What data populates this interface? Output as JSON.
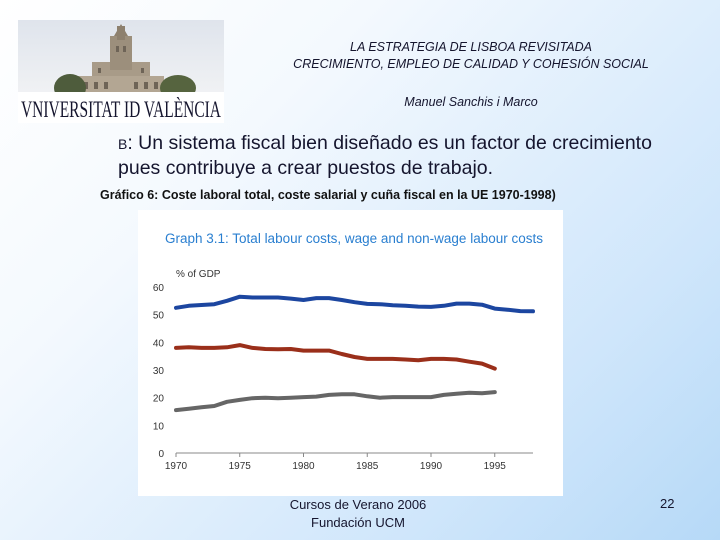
{
  "logo": {
    "wordmark": "VNIVERSITAT ID VALÈNCIA"
  },
  "header": {
    "line1": "LA ESTRATEGIA DE LISBOA REVISITADA",
    "line2": "CRECIMIENTO, EMPLEO DE CALIDAD Y COHESIÓN SOCIAL",
    "author": "Manuel Sanchis i Marco"
  },
  "bullet": {
    "letter": "B",
    "text": ": Un sistema fiscal bien diseñado es un factor de crecimiento pues contribuye a crear puestos de trabajo."
  },
  "caption": "Gráfico 6: Coste laboral total, coste salarial y cuña fiscal en la UE 1970-1998)",
  "chart_data": {
    "type": "line",
    "title": "Graph 3.1: Total labour costs, wage and non-wage labour costs",
    "ylabel": "% of GDP",
    "xlim": [
      1970,
      1998
    ],
    "ylim": [
      0,
      60
    ],
    "x_ticks": [
      1970,
      1975,
      1980,
      1985,
      1990,
      1995
    ],
    "y_ticks": [
      0,
      10,
      20,
      30,
      40,
      50,
      60
    ],
    "grid": false,
    "series": [
      {
        "color": "#1c46a0",
        "x": [
          1970,
          1971,
          1972,
          1973,
          1974,
          1975,
          1976,
          1977,
          1978,
          1979,
          1980,
          1981,
          1982,
          1983,
          1984,
          1985,
          1986,
          1987,
          1988,
          1989,
          1990,
          1991,
          1992,
          1993,
          1994,
          1995,
          1996,
          1997,
          1998
        ],
        "values": [
          52.5,
          53.2,
          53.5,
          53.8,
          55.0,
          56.5,
          56.2,
          56.2,
          56.2,
          55.8,
          55.3,
          56.0,
          56.0,
          55.3,
          54.5,
          53.9,
          53.8,
          53.4,
          53.2,
          52.9,
          52.8,
          53.2,
          54.0,
          54.0,
          53.6,
          52.2,
          51.8,
          51.3,
          51.2
        ]
      },
      {
        "color": "#9a2f1a",
        "x": [
          1970,
          1971,
          1972,
          1973,
          1974,
          1975,
          1976,
          1977,
          1978,
          1979,
          1980,
          1981,
          1982,
          1983,
          1984,
          1985,
          1986,
          1987,
          1988,
          1989,
          1990,
          1991,
          1992,
          1993,
          1994,
          1995
        ],
        "values": [
          38.0,
          38.2,
          38.0,
          38.0,
          38.2,
          39.0,
          38.0,
          37.6,
          37.5,
          37.6,
          37.0,
          37.0,
          37.0,
          35.8,
          34.7,
          34.0,
          34.0,
          34.0,
          33.8,
          33.5,
          34.0,
          34.0,
          33.8,
          33.0,
          32.3,
          30.5
        ]
      },
      {
        "color": "#666666",
        "x": [
          1970,
          1971,
          1972,
          1973,
          1974,
          1975,
          1976,
          1977,
          1978,
          1979,
          1980,
          1981,
          1982,
          1983,
          1984,
          1985,
          1986,
          1987,
          1988,
          1989,
          1990,
          1991,
          1992,
          1993,
          1994,
          1995
        ],
        "values": [
          15.5,
          16.0,
          16.5,
          17.0,
          18.5,
          19.2,
          19.8,
          20.0,
          19.8,
          20.0,
          20.2,
          20.4,
          21.0,
          21.2,
          21.2,
          20.5,
          20.0,
          20.2,
          20.2,
          20.2,
          20.2,
          21.0,
          21.4,
          21.8,
          21.6,
          22.0
        ]
      }
    ]
  },
  "footer": {
    "line1": "Cursos de Verano 2006",
    "line2": "Fundación UCM"
  },
  "page_number": "22"
}
